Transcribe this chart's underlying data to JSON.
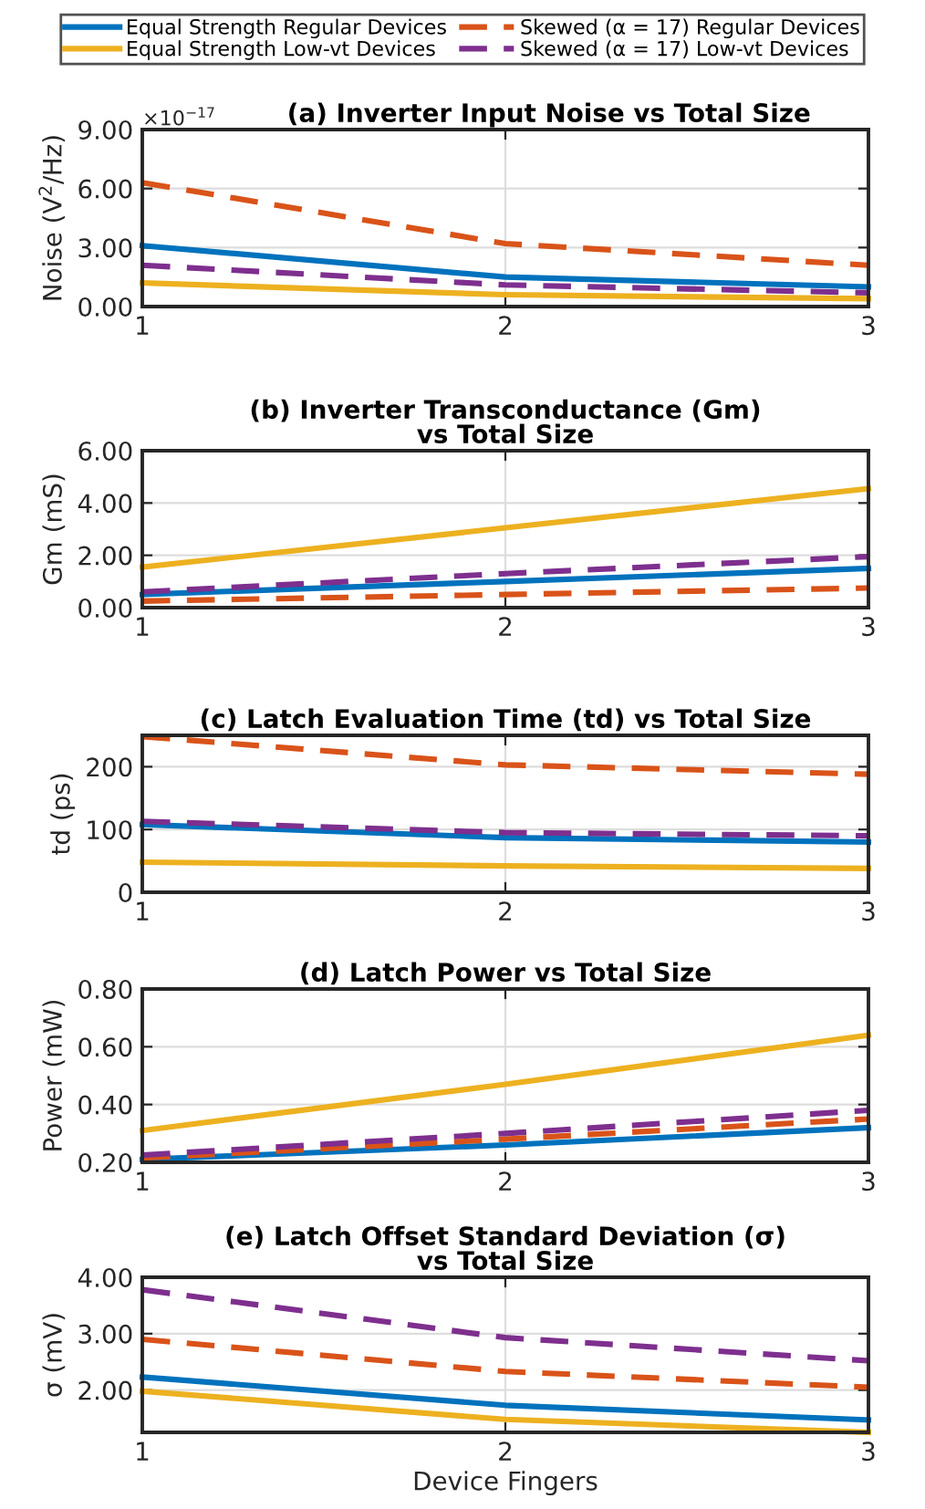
{
  "chart_data": [
    {
      "type": "line",
      "title": "(a) Inverter Input Noise vs Total Size",
      "ylabel": "Noise (V$^{2}$/Hz)",
      "annotations": [
        "×10$^{−17}$"
      ],
      "x": [
        1,
        2,
        3
      ],
      "xlim": [
        1,
        3
      ],
      "xticks": [
        1,
        2,
        3
      ],
      "ylim": [
        0,
        9
      ],
      "yticks": [
        {
          "value": 0,
          "label": "0.00"
        },
        {
          "value": 3,
          "label": "3.00"
        },
        {
          "value": 6,
          "label": "6.00"
        },
        {
          "value": 9,
          "label": "9.00"
        }
      ],
      "grid": true,
      "legend": "top",
      "series": [
        {
          "name": "Equal Strength Regular Devices",
          "color": "#0072bd",
          "line_style": "solid",
          "values": [
            3.1,
            1.5,
            1.0
          ]
        },
        {
          "name": "Equal Strength Low-vt Devices",
          "color": "#edb120",
          "line_style": "solid",
          "values": [
            1.2,
            0.6,
            0.4
          ]
        },
        {
          "name": "Skewed (α = 17) Regular Devices",
          "color": "#d95319",
          "line_style": "dashed",
          "values": [
            6.3,
            3.2,
            2.1
          ]
        },
        {
          "name": "Skewed (α = 17) Low-vt Devices",
          "color": "#7e2f8e",
          "line_style": "dashed",
          "values": [
            2.1,
            1.1,
            0.7
          ]
        }
      ]
    },
    {
      "type": "line",
      "title": "(b) Inverter Transconductance (Gm)\nvs Total Size",
      "ylabel": "Gm (mS)",
      "x": [
        1,
        2,
        3
      ],
      "xlim": [
        1,
        3
      ],
      "xticks": [
        1,
        2,
        3
      ],
      "ylim": [
        0,
        6
      ],
      "yticks": [
        {
          "value": 0,
          "label": "0.00"
        },
        {
          "value": 2,
          "label": "2.00"
        },
        {
          "value": 4,
          "label": "4.00"
        },
        {
          "value": 6,
          "label": "6.00"
        }
      ],
      "grid": true,
      "series": [
        {
          "color": "#0072bd",
          "line_style": "solid",
          "values": [
            0.5,
            1.0,
            1.5
          ]
        },
        {
          "color": "#edb120",
          "line_style": "solid",
          "values": [
            1.55,
            3.05,
            4.55
          ]
        },
        {
          "color": "#d95319",
          "line_style": "dashed",
          "values": [
            0.25,
            0.5,
            0.75
          ]
        },
        {
          "color": "#7e2f8e",
          "line_style": "dashed",
          "values": [
            0.6,
            1.3,
            1.95
          ]
        }
      ]
    },
    {
      "type": "line",
      "title": "(c) Latch Evaluation Time (td) vs Total Size",
      "ylabel": "td (ps)",
      "x": [
        1,
        2,
        3
      ],
      "xlim": [
        1,
        3
      ],
      "xticks": [
        1,
        2,
        3
      ],
      "ylim": [
        0,
        250
      ],
      "yticks": [
        0,
        100,
        200
      ],
      "grid": true,
      "series": [
        {
          "color": "#0072bd",
          "line_style": "solid",
          "values": [
            108,
            87,
            80
          ]
        },
        {
          "color": "#edb120",
          "line_style": "solid",
          "values": [
            48,
            42,
            38
          ]
        },
        {
          "color": "#d95319",
          "line_style": "dashed",
          "values": [
            248,
            203,
            188
          ]
        },
        {
          "color": "#7e2f8e",
          "line_style": "dashed",
          "values": [
            113,
            95,
            90
          ]
        }
      ]
    },
    {
      "type": "line",
      "title": "(d) Latch Power vs Total Size",
      "ylabel": "Power (mW)",
      "x": [
        1,
        2,
        3
      ],
      "xlim": [
        1,
        3
      ],
      "xticks": [
        1,
        2,
        3
      ],
      "ylim": [
        0.2,
        0.8
      ],
      "yticks": [
        {
          "value": 0.2,
          "label": "0.20"
        },
        {
          "value": 0.4,
          "label": "0.40"
        },
        {
          "value": 0.6,
          "label": "0.60"
        },
        {
          "value": 0.8,
          "label": "0.80"
        }
      ],
      "grid": true,
      "series": [
        {
          "color": "#0072bd",
          "line_style": "solid",
          "values": [
            0.21,
            0.26,
            0.32
          ]
        },
        {
          "color": "#edb120",
          "line_style": "solid",
          "values": [
            0.31,
            0.47,
            0.64
          ]
        },
        {
          "color": "#d95319",
          "line_style": "dashed",
          "values": [
            0.215,
            0.28,
            0.35
          ]
        },
        {
          "color": "#7e2f8e",
          "line_style": "dashed",
          "values": [
            0.225,
            0.3,
            0.38
          ]
        }
      ]
    },
    {
      "type": "line",
      "title": "(e) Latch Offset Standard Deviation (σ)\nvs Total Size",
      "ylabel": "σ (mV)",
      "xlabel": "Device Fingers",
      "x": [
        1,
        2,
        3
      ],
      "xlim": [
        1,
        3
      ],
      "xticks": [
        1,
        2,
        3
      ],
      "ylim": [
        1.25,
        4
      ],
      "yticks": [
        {
          "value": 2,
          "label": "2.00"
        },
        {
          "value": 3,
          "label": "3.00"
        },
        {
          "value": 4,
          "label": "4.00"
        }
      ],
      "grid": true,
      "series": [
        {
          "color": "#0072bd",
          "line_style": "solid",
          "values": [
            2.23,
            1.73,
            1.47
          ]
        },
        {
          "color": "#edb120",
          "line_style": "solid",
          "values": [
            1.98,
            1.48,
            1.25
          ]
        },
        {
          "color": "#d95319",
          "line_style": "dashed",
          "values": [
            2.9,
            2.33,
            2.05
          ]
        },
        {
          "color": "#7e2f8e",
          "line_style": "dashed",
          "values": [
            3.78,
            2.93,
            2.52
          ]
        }
      ]
    }
  ]
}
